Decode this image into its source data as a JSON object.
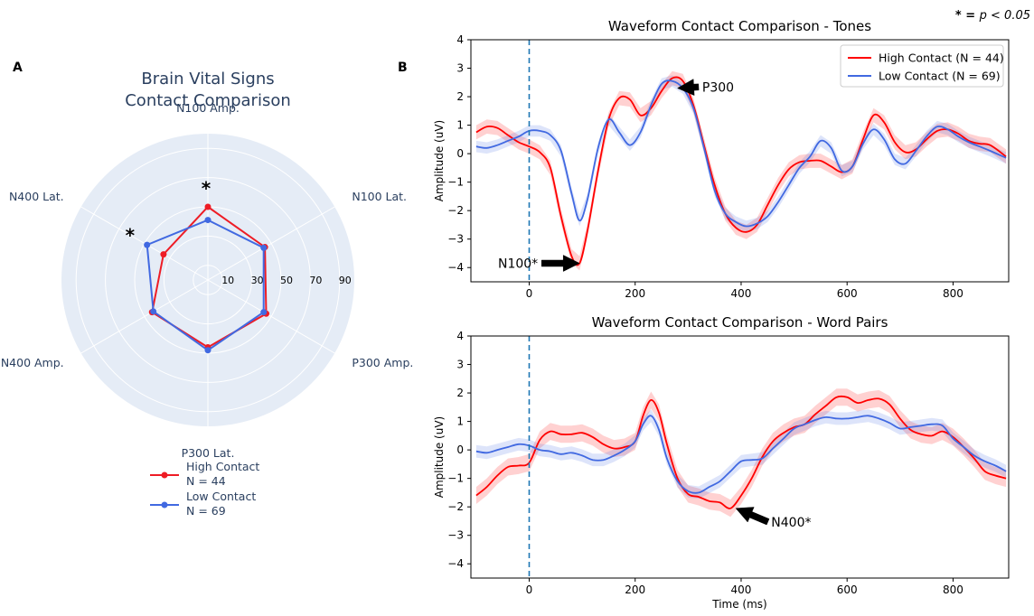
{
  "panel_a_label": "A",
  "panel_b_label": "B",
  "significance_note": {
    "star": "* =",
    "text": "p < 0.05"
  },
  "chart_data": [
    {
      "type": "radar",
      "title_lines": [
        "Brain Vital Signs",
        "Contact Comparison"
      ],
      "axes": [
        "N100 Amp.",
        "N100 Lat.",
        "P300 Amp.",
        "P300 Lat.",
        "N400 Amp.",
        "N400 Lat."
      ],
      "radial_range": [
        0,
        100
      ],
      "radial_ticks": [
        10,
        30,
        50,
        70,
        90
      ],
      "significant_axes": [
        "N100 Amp.",
        "N400 Lat."
      ],
      "significance_marker": "*",
      "series": [
        {
          "name": "High Contact",
          "n_label": "N = 44",
          "color": "#ee1c25",
          "values": [
            50,
            45,
            46,
            46,
            44,
            35
          ]
        },
        {
          "name": "Low Contact",
          "n_label": "N = 69",
          "color": "#4169e1",
          "values": [
            41,
            44,
            44,
            48,
            43,
            48
          ]
        }
      ],
      "legend_position": "bottom"
    },
    {
      "type": "line",
      "title": "Waveform Contact Comparison - Tones",
      "xlabel": "",
      "ylabel": "Amplitude (uV)",
      "xlim": [
        -110,
        905
      ],
      "ylim": [
        -4.5,
        4
      ],
      "xticks": [
        0,
        200,
        400,
        600,
        800
      ],
      "yticks": [
        -4,
        -3,
        -2,
        -1,
        0,
        1,
        2,
        3,
        4
      ],
      "stimulus_onset_ms": 0,
      "legend_position": "top-right",
      "series": [
        {
          "name": "High Contact (N = 44)",
          "color": "#ff0000",
          "band_half_width": 0.25,
          "x": [
            -100,
            -80,
            -60,
            -40,
            -20,
            0,
            20,
            40,
            60,
            80,
            95,
            110,
            130,
            150,
            170,
            190,
            210,
            230,
            250,
            270,
            290,
            310,
            330,
            350,
            370,
            390,
            410,
            430,
            450,
            470,
            490,
            510,
            530,
            550,
            570,
            590,
            610,
            630,
            650,
            670,
            690,
            710,
            730,
            750,
            770,
            790,
            810,
            830,
            850,
            870,
            900
          ],
          "y": [
            0.75,
            0.95,
            0.9,
            0.65,
            0.4,
            0.25,
            0.05,
            -0.5,
            -2.2,
            -3.6,
            -3.85,
            -2.7,
            -0.6,
            1.2,
            1.95,
            1.9,
            1.35,
            1.6,
            2.2,
            2.65,
            2.55,
            1.7,
            0.3,
            -1.1,
            -2.1,
            -2.6,
            -2.75,
            -2.5,
            -1.8,
            -1.1,
            -0.55,
            -0.3,
            -0.25,
            -0.25,
            -0.45,
            -0.65,
            -0.45,
            0.5,
            1.35,
            1.1,
            0.4,
            0.05,
            0.15,
            0.5,
            0.8,
            0.85,
            0.7,
            0.45,
            0.35,
            0.3,
            -0.1
          ]
        },
        {
          "name": "Low Contact (N = 69)",
          "color": "#4169e1",
          "band_half_width": 0.2,
          "x": [
            -100,
            -80,
            -60,
            -40,
            -20,
            0,
            20,
            40,
            60,
            80,
            95,
            110,
            130,
            150,
            170,
            190,
            210,
            230,
            250,
            270,
            290,
            310,
            330,
            350,
            370,
            390,
            410,
            430,
            450,
            470,
            490,
            510,
            530,
            550,
            570,
            590,
            610,
            630,
            650,
            670,
            690,
            710,
            730,
            750,
            770,
            790,
            810,
            830,
            850,
            870,
            900
          ],
          "y": [
            0.25,
            0.2,
            0.3,
            0.45,
            0.6,
            0.8,
            0.8,
            0.65,
            0.1,
            -1.4,
            -2.35,
            -1.6,
            0.2,
            1.2,
            0.75,
            0.3,
            0.75,
            1.7,
            2.45,
            2.55,
            2.3,
            1.6,
            0.2,
            -1.3,
            -2.1,
            -2.4,
            -2.55,
            -2.45,
            -2.2,
            -1.7,
            -1.1,
            -0.5,
            -0.1,
            0.45,
            0.2,
            -0.6,
            -0.45,
            0.35,
            0.85,
            0.5,
            -0.2,
            -0.35,
            0.1,
            0.6,
            0.95,
            0.85,
            0.6,
            0.4,
            0.25,
            0.1,
            -0.15
          ]
        }
      ],
      "annotations": [
        {
          "text": "P300",
          "target": [
            280,
            2.3
          ],
          "text_at": [
            330,
            2.35
          ]
        },
        {
          "text": "N100*",
          "target": [
            95,
            -3.85
          ],
          "text_at": [
            -25,
            -3.85
          ]
        }
      ]
    },
    {
      "type": "line",
      "title": "Waveform Contact Comparison - Word Pairs",
      "xlabel": "Time (ms)",
      "ylabel": "Amplitude (uV)",
      "xlim": [
        -110,
        905
      ],
      "ylim": [
        -4.5,
        4
      ],
      "xticks": [
        0,
        200,
        400,
        600,
        800
      ],
      "yticks": [
        -4,
        -3,
        -2,
        -1,
        0,
        1,
        2,
        3,
        4
      ],
      "stimulus_onset_ms": 0,
      "series": [
        {
          "name": "High Contact (N = 44)",
          "color": "#ff0000",
          "band_half_width": 0.3,
          "x": [
            -100,
            -80,
            -60,
            -40,
            -20,
            0,
            20,
            40,
            60,
            80,
            100,
            120,
            140,
            160,
            180,
            200,
            215,
            230,
            245,
            260,
            280,
            300,
            320,
            340,
            360,
            380,
            400,
            420,
            440,
            460,
            480,
            500,
            520,
            540,
            560,
            580,
            600,
            620,
            640,
            660,
            680,
            700,
            720,
            740,
            760,
            780,
            800,
            820,
            840,
            860,
            880,
            900
          ],
          "y": [
            -1.6,
            -1.3,
            -0.9,
            -0.6,
            -0.55,
            -0.45,
            0.35,
            0.65,
            0.55,
            0.55,
            0.6,
            0.45,
            0.2,
            0.05,
            0.1,
            0.3,
            1.2,
            1.75,
            1.3,
            0.2,
            -1.0,
            -1.55,
            -1.65,
            -1.8,
            -1.85,
            -2.05,
            -1.6,
            -1.0,
            -0.25,
            0.3,
            0.6,
            0.8,
            0.9,
            1.25,
            1.55,
            1.85,
            1.85,
            1.65,
            1.75,
            1.8,
            1.6,
            1.1,
            0.7,
            0.55,
            0.5,
            0.65,
            0.45,
            0.1,
            -0.3,
            -0.75,
            -0.9,
            -1.0
          ]
        },
        {
          "name": "Low Contact (N = 69)",
          "color": "#4169e1",
          "band_half_width": 0.22,
          "x": [
            -100,
            -80,
            -60,
            -40,
            -20,
            0,
            20,
            40,
            60,
            80,
            100,
            120,
            140,
            160,
            180,
            200,
            215,
            230,
            245,
            260,
            280,
            300,
            320,
            340,
            360,
            380,
            400,
            420,
            440,
            460,
            480,
            500,
            520,
            540,
            560,
            580,
            600,
            620,
            640,
            660,
            680,
            700,
            720,
            740,
            760,
            780,
            800,
            820,
            840,
            860,
            880,
            900
          ],
          "y": [
            -0.05,
            -0.1,
            0.0,
            0.1,
            0.2,
            0.15,
            0.0,
            -0.05,
            -0.15,
            -0.1,
            -0.2,
            -0.35,
            -0.35,
            -0.2,
            0.0,
            0.3,
            0.9,
            1.2,
            0.7,
            -0.3,
            -1.1,
            -1.45,
            -1.5,
            -1.3,
            -1.1,
            -0.75,
            -0.4,
            -0.35,
            -0.3,
            0.05,
            0.4,
            0.75,
            0.9,
            1.05,
            1.15,
            1.1,
            1.1,
            1.15,
            1.2,
            1.1,
            0.95,
            0.75,
            0.8,
            0.85,
            0.9,
            0.85,
            0.4,
            0.1,
            -0.2,
            -0.4,
            -0.55,
            -0.75
          ]
        }
      ],
      "annotations": [
        {
          "text": "N400*",
          "target": [
            390,
            -2.05
          ],
          "text_at": [
            460,
            -2.6
          ]
        }
      ]
    }
  ]
}
